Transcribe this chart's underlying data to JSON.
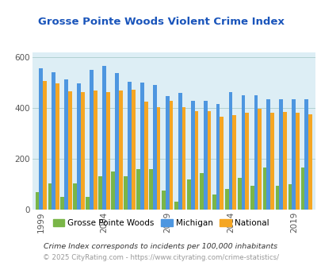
{
  "title": "Grosse Pointe Woods Violent Crime Index",
  "years": [
    1999,
    2000,
    2001,
    2002,
    2003,
    2004,
    2005,
    2006,
    2007,
    2008,
    2009,
    2010,
    2011,
    2012,
    2013,
    2014,
    2015,
    2016,
    2017,
    2018,
    2019,
    2020
  ],
  "gpw": [
    70,
    103,
    50,
    103,
    50,
    133,
    150,
    130,
    160,
    160,
    75,
    30,
    120,
    145,
    60,
    80,
    125,
    95,
    165,
    95,
    100,
    165
  ],
  "michigan": [
    558,
    542,
    512,
    497,
    552,
    568,
    538,
    503,
    500,
    492,
    448,
    460,
    430,
    430,
    415,
    465,
    450,
    450,
    435,
    435,
    435,
    435
  ],
  "national": [
    507,
    497,
    468,
    462,
    469,
    464,
    469,
    474,
    427,
    405,
    429,
    404,
    388,
    387,
    367,
    373,
    383,
    399,
    383,
    384,
    383,
    375
  ],
  "gpw_color": "#7ab648",
  "michigan_color": "#4d96e0",
  "national_color": "#f5a623",
  "bg_color": "#ddeef5",
  "title_color": "#1a55bb",
  "ylim": [
    0,
    620
  ],
  "yticks": [
    0,
    200,
    400,
    600
  ],
  "subtitle": "Crime Index corresponds to incidents per 100,000 inhabitants",
  "footer": "© 2025 CityRating.com - https://www.cityrating.com/crime-statistics/",
  "legend_labels": [
    "Grosse Pointe Woods",
    "Michigan",
    "National"
  ],
  "tick_years": [
    1999,
    2004,
    2009,
    2014,
    2019
  ]
}
